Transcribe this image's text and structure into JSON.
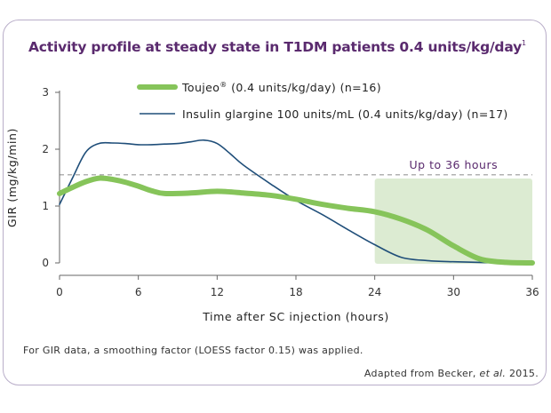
{
  "title": "Activity profile at steady state in T1DM patients 0.4 units/kg/day",
  "title_sup": "1",
  "footnote": "For GIR data, a smoothing factor (LOESS factor 0.15) was applied.",
  "source": {
    "prefix": "Adapted from Becker, ",
    "italic": "et al.",
    "suffix": " 2015."
  },
  "colors": {
    "toujeo": "#86c45a",
    "glargine": "#1f4e79",
    "shade": "#dcebd2",
    "reference": "#999999",
    "title": "#5a2a6e"
  },
  "chart_data": {
    "type": "line",
    "xlabel": "Time after SC injection (hours)",
    "ylabel": "GIR (mg/kg/min)",
    "xlim": [
      0,
      36
    ],
    "ylim": [
      0,
      3
    ],
    "x_ticks": [
      "0",
      "6",
      "12",
      "18",
      "24",
      "30",
      "36"
    ],
    "y_ticks": [
      "0",
      "1",
      "2",
      "3"
    ],
    "reference_line_y": 1.55,
    "shaded_region": {
      "x_start": 24,
      "x_end": 36,
      "label": "Up to 36 hours"
    },
    "legend_position": "top",
    "series": [
      {
        "name": "Toujeo",
        "name_sup": "®",
        "name_suffix": " (0.4 units/kg/day) (n=16)",
        "style": "thick",
        "x": [
          0,
          1,
          2,
          3,
          4,
          5,
          6,
          7,
          8,
          10,
          12,
          14,
          16,
          18,
          20,
          22,
          24,
          26,
          28,
          30,
          32,
          34,
          36
        ],
        "y": [
          1.22,
          1.33,
          1.43,
          1.49,
          1.47,
          1.42,
          1.35,
          1.27,
          1.22,
          1.23,
          1.26,
          1.23,
          1.19,
          1.12,
          1.03,
          0.96,
          0.9,
          0.77,
          0.58,
          0.3,
          0.07,
          0.01,
          0.0
        ]
      },
      {
        "name": "Insulin glargine 100 units/mL (0.4 units/kg/day) (n=17)",
        "style": "thin",
        "x": [
          0,
          1,
          2,
          3,
          4,
          5,
          6,
          7,
          8,
          9,
          10,
          11,
          12,
          13,
          14,
          16,
          18,
          20,
          22,
          24,
          26,
          28,
          30,
          32,
          34,
          36
        ],
        "y": [
          1.03,
          1.5,
          1.95,
          2.1,
          2.11,
          2.1,
          2.08,
          2.08,
          2.09,
          2.1,
          2.13,
          2.16,
          2.1,
          1.92,
          1.72,
          1.4,
          1.1,
          0.85,
          0.58,
          0.32,
          0.1,
          0.04,
          0.02,
          0.01,
          0.0,
          0.0
        ]
      }
    ]
  }
}
